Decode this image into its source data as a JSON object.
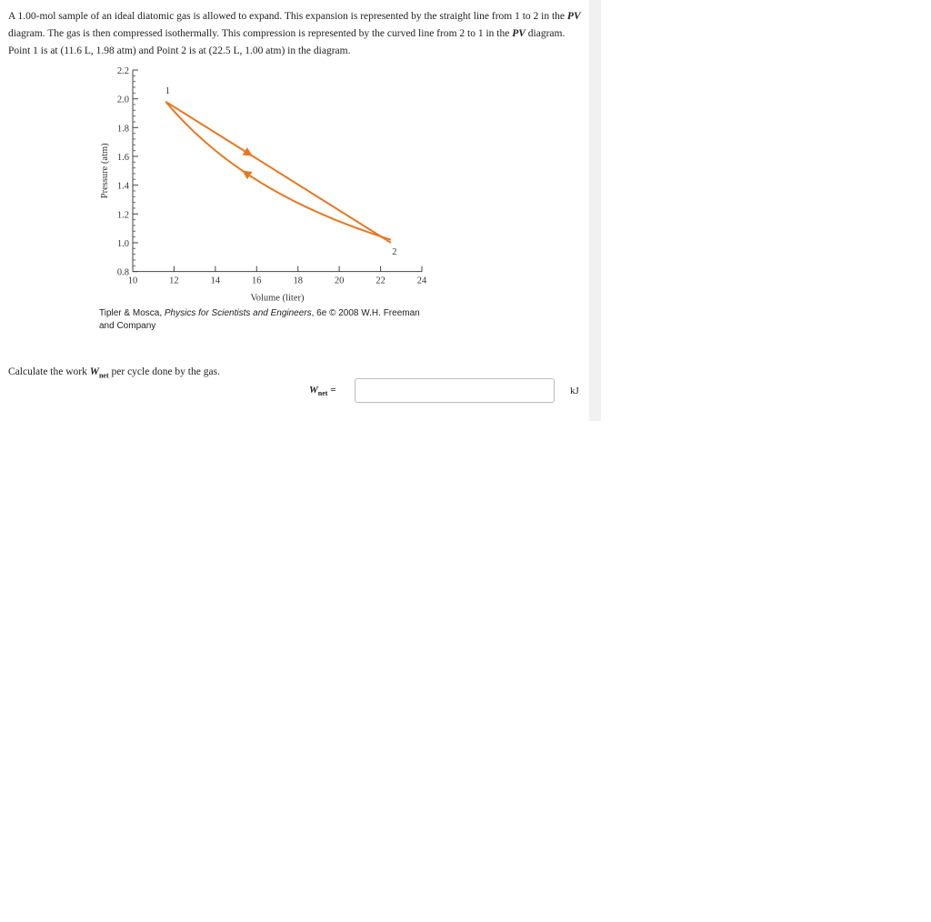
{
  "question": {
    "parts": [
      {
        "t": "A 1.00-mol sample of an ideal diatomic gas is allowed to expand. This expansion is represented by the straight line from 1 to 2 in the "
      },
      {
        "t": "PV",
        "i": true
      },
      {
        "t": " diagram. The gas is then compressed isothermally. This compression is represented by the curved line from 2 to 1 in the "
      },
      {
        "t": "PV",
        "i": true
      },
      {
        "t": " diagram. Point 1 is at (11.6 L, 1.98 atm) and Point 2 is at (22.5 L, 1.00 atm) in the diagram."
      }
    ]
  },
  "chart_data": {
    "type": "line",
    "xlabel": "Volume (liter)",
    "ylabel": "Pressure (atm)",
    "xlim": [
      10,
      24
    ],
    "ylim": [
      0.8,
      2.2
    ],
    "xticks": [
      "10",
      "12",
      "14",
      "16",
      "18",
      "20",
      "22",
      "24"
    ],
    "yticks": [
      "0.8",
      "1.0",
      "1.2",
      "1.4",
      "1.6",
      "1.8",
      "2.0",
      "2.2"
    ],
    "points": [
      {
        "label": "1",
        "V": 11.6,
        "P": 1.98
      },
      {
        "label": "2",
        "V": 22.5,
        "P": 1.0
      }
    ],
    "series": [
      {
        "process": "straight line expansion 1 to 2",
        "from": "1",
        "to": "2"
      },
      {
        "process": "isothermal compression 2 to 1",
        "from": "2",
        "to": "1"
      }
    ],
    "color": "#e87722"
  },
  "credit": {
    "pre": "Tipler & Mosca, ",
    "title": "Physics for Scientists and Engineers",
    "post": ", 6e © 2008 W.H. Freeman and Company"
  },
  "prompt": {
    "pre": "Calculate the work ",
    "var": "W",
    "sub": "net",
    "post": " per cycle done by the gas."
  },
  "answer": {
    "var": "W",
    "sub": "net",
    "eq": " =",
    "value": "",
    "unit": "kJ"
  }
}
